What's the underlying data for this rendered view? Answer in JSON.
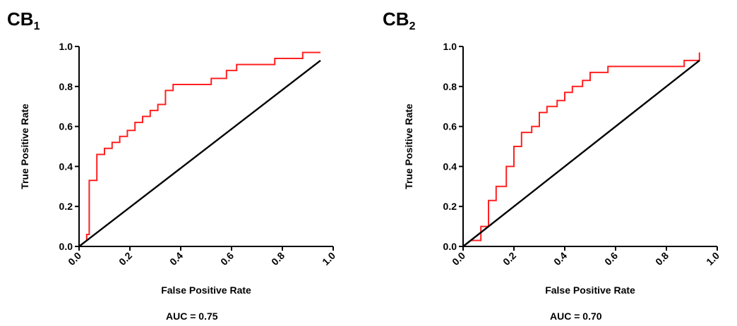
{
  "chart_data": [
    {
      "type": "line",
      "title": "CB",
      "title_subscript": "1",
      "xlabel": "False Positive Rate",
      "ylabel": "True Positive Rate",
      "xlim": [
        0,
        1
      ],
      "ylim": [
        0,
        1
      ],
      "xticks": [
        "0.0",
        "0.2",
        "0.4",
        "0.6",
        "0.8",
        "1.0"
      ],
      "yticks": [
        "0.0",
        "0.2",
        "0.4",
        "0.6",
        "0.8",
        "1.0"
      ],
      "annotation": "AUC = 0.75",
      "grid": false,
      "series": [
        {
          "color": "#ff2020",
          "x": [
            0,
            0.03,
            0.03,
            0.04,
            0.04,
            0.07,
            0.07,
            0.1,
            0.1,
            0.13,
            0.13,
            0.16,
            0.16,
            0.19,
            0.19,
            0.22,
            0.22,
            0.25,
            0.25,
            0.28,
            0.28,
            0.31,
            0.31,
            0.34,
            0.34,
            0.37,
            0.37,
            0.4,
            0.4,
            0.52,
            0.52,
            0.58,
            0.58,
            0.62,
            0.62,
            0.77,
            0.77,
            0.88,
            0.88,
            0.95
          ],
          "y": [
            0,
            0.03,
            0.06,
            0.06,
            0.33,
            0.33,
            0.46,
            0.46,
            0.49,
            0.49,
            0.52,
            0.52,
            0.55,
            0.55,
            0.58,
            0.58,
            0.62,
            0.62,
            0.65,
            0.65,
            0.68,
            0.68,
            0.71,
            0.71,
            0.78,
            0.78,
            0.81,
            0.81,
            0.81,
            0.81,
            0.84,
            0.84,
            0.88,
            0.88,
            0.91,
            0.91,
            0.94,
            0.94,
            0.97,
            0.97
          ]
        },
        {
          "color": "#000000",
          "x": [
            0,
            0.95
          ],
          "y": [
            0,
            0.93
          ]
        }
      ]
    },
    {
      "type": "line",
      "title": "CB",
      "title_subscript": "2",
      "xlabel": "False Positive Rate",
      "ylabel": "True Positive Rate",
      "xlim": [
        0,
        1
      ],
      "ylim": [
        0,
        1
      ],
      "xticks": [
        "0.0",
        "0.2",
        "0.4",
        "0.6",
        "0.8",
        "1.0"
      ],
      "yticks": [
        "0.0",
        "0.2",
        "0.4",
        "0.6",
        "0.8",
        "1.0"
      ],
      "annotation": "AUC = 0.70",
      "grid": false,
      "series": [
        {
          "color": "#ff2020",
          "x": [
            0,
            0.03,
            0.06,
            0.07,
            0.07,
            0.1,
            0.1,
            0.13,
            0.13,
            0.17,
            0.17,
            0.2,
            0.2,
            0.23,
            0.23,
            0.27,
            0.27,
            0.3,
            0.3,
            0.33,
            0.33,
            0.37,
            0.37,
            0.4,
            0.4,
            0.43,
            0.43,
            0.47,
            0.47,
            0.5,
            0.5,
            0.57,
            0.57,
            0.87,
            0.87,
            0.93,
            0.93
          ],
          "y": [
            0,
            0.03,
            0.03,
            0.03,
            0.1,
            0.1,
            0.23,
            0.23,
            0.3,
            0.3,
            0.4,
            0.4,
            0.5,
            0.5,
            0.57,
            0.57,
            0.6,
            0.6,
            0.67,
            0.67,
            0.7,
            0.7,
            0.73,
            0.73,
            0.77,
            0.77,
            0.8,
            0.8,
            0.83,
            0.83,
            0.87,
            0.87,
            0.9,
            0.9,
            0.93,
            0.93,
            0.97
          ]
        },
        {
          "color": "#000000",
          "x": [
            0,
            0.93
          ],
          "y": [
            0,
            0.93
          ]
        }
      ]
    }
  ]
}
